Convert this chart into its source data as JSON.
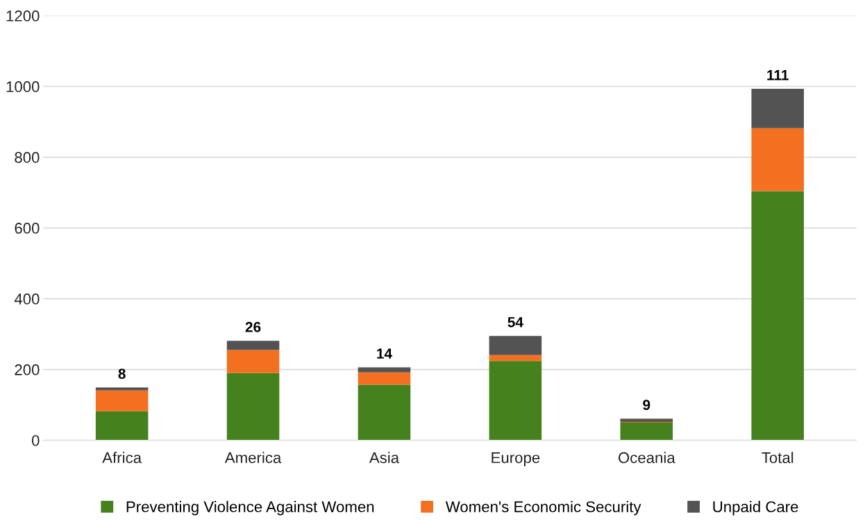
{
  "chart_data": {
    "type": "bar",
    "stacked": true,
    "categories": [
      "Africa",
      "America",
      "Asia",
      "Europe",
      "Oceania",
      "Total"
    ],
    "series": [
      {
        "name": "Preventing Violence Against Women",
        "color": "#45821e",
        "values": [
          82,
          190,
          157,
          224,
          50,
          704
        ]
      },
      {
        "name": "Women's Economic Security",
        "color": "#f37021",
        "values": [
          59,
          65,
          35,
          17,
          2,
          178
        ]
      },
      {
        "name": "Unpaid Care",
        "color": "#535353",
        "values": [
          8,
          26,
          14,
          54,
          9,
          111
        ],
        "value_labels": [
          "8",
          "26",
          "14",
          "54",
          "9",
          "111"
        ]
      }
    ],
    "ylim": [
      0,
      1200
    ],
    "yticks": [
      0,
      200,
      400,
      600,
      800,
      1000,
      1200
    ],
    "grid": "y",
    "legend": "bottom"
  }
}
